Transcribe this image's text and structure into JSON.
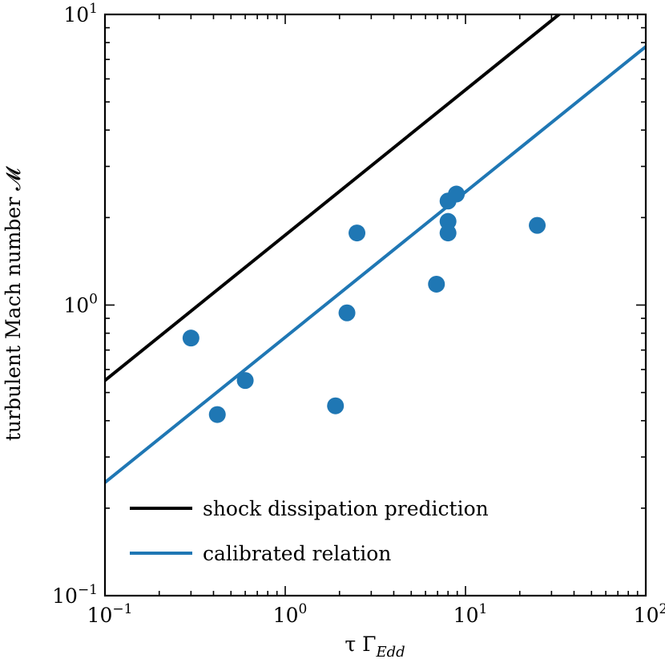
{
  "chart_data": {
    "type": "scatter",
    "xlabel": {
      "base": "τ Γ",
      "sub": "Edd"
    },
    "ylabel": "turbulent Mach number 𝓜",
    "xscale": "log",
    "yscale": "log",
    "xlim": [
      0.1,
      100
    ],
    "ylim": [
      0.1,
      10
    ],
    "grid": false,
    "legend_placement": "lower-left",
    "x_ticks": [
      {
        "value": 0.1,
        "base": "10",
        "exp": "−1"
      },
      {
        "value": 1,
        "base": "10",
        "exp": "0"
      },
      {
        "value": 10,
        "base": "10",
        "exp": "1"
      },
      {
        "value": 100,
        "base": "10",
        "exp": "2"
      }
    ],
    "y_ticks": [
      {
        "value": 0.1,
        "base": "10",
        "exp": "−1"
      },
      {
        "value": 1,
        "base": "10",
        "exp": "0"
      },
      {
        "value": 10,
        "base": "10",
        "exp": "1"
      }
    ],
    "points": {
      "color": "#1f77b4",
      "x": [
        0.3,
        0.42,
        0.6,
        1.9,
        2.2,
        2.5,
        6.9,
        8.0,
        8.0,
        8.0,
        8.9,
        25
      ],
      "y": [
        0.77,
        0.42,
        0.55,
        0.45,
        0.94,
        1.77,
        1.18,
        2.28,
        1.94,
        1.77,
        2.41,
        1.88
      ]
    },
    "lines": [
      {
        "name": "shock dissipation prediction",
        "color": "#000000",
        "coefficient": 1.74,
        "power": 0.5
      },
      {
        "name": "calibrated relation",
        "color": "#1f77b4",
        "coefficient": 0.775,
        "power": 0.5
      }
    ]
  }
}
